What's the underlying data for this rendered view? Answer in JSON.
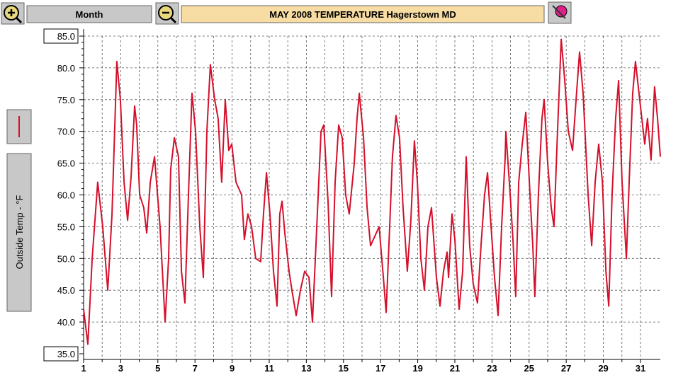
{
  "toolbar": {
    "period_button": "Month"
  },
  "chart_data": {
    "type": "line",
    "title": "MAY  2008  TEMPERATURE  Hagerstown MD",
    "y_label": "Outside Temp - °F",
    "xlim": [
      1,
      32.07
    ],
    "ylim": [
      35,
      85
    ],
    "xticks": [
      1,
      3,
      5,
      7,
      9,
      11,
      13,
      15,
      17,
      19,
      21,
      23,
      25,
      27,
      29,
      31
    ],
    "yticks": [
      {
        "value": 35,
        "label": "35.0"
      },
      {
        "value": 40,
        "label": "40.0"
      },
      {
        "value": 45,
        "label": "45.0"
      },
      {
        "value": 50,
        "label": "50.0"
      },
      {
        "value": 55,
        "label": "55.0"
      },
      {
        "value": 60,
        "label": "60.0"
      },
      {
        "value": 65,
        "label": "65.0"
      },
      {
        "value": 70,
        "label": "70.0"
      },
      {
        "value": 75,
        "label": "75.0"
      },
      {
        "value": 80,
        "label": "80.0"
      },
      {
        "value": 85,
        "label": "85.0"
      }
    ],
    "grid": true,
    "series": [
      {
        "name": "Outside Temp",
        "color": "#d4102c",
        "x": [
          1.0,
          1.23,
          1.46,
          1.76,
          2.03,
          2.3,
          2.53,
          2.79,
          2.98,
          3.18,
          3.37,
          3.56,
          3.75,
          3.86,
          4.02,
          4.24,
          4.4,
          4.59,
          4.82,
          5.12,
          5.39,
          5.58,
          5.69,
          5.89,
          6.11,
          6.27,
          6.46,
          6.65,
          6.84,
          7.03,
          7.26,
          7.45,
          7.64,
          7.83,
          8.06,
          8.25,
          8.44,
          8.63,
          8.82,
          8.98,
          9.21,
          9.51,
          9.66,
          9.85,
          10.05,
          10.27,
          10.54,
          10.69,
          10.85,
          11.04,
          11.23,
          11.42,
          11.57,
          11.69,
          11.84,
          12.07,
          12.22,
          12.45,
          12.68,
          12.91,
          13.14,
          13.33,
          13.56,
          13.79,
          13.94,
          14.17,
          14.36,
          14.55,
          14.74,
          14.93,
          15.12,
          15.31,
          15.58,
          15.73,
          15.85,
          16.08,
          16.27,
          16.46,
          16.92,
          17.15,
          17.3,
          17.49,
          17.64,
          17.83,
          18.02,
          18.21,
          18.37,
          18.44,
          18.63,
          18.82,
          18.98,
          19.17,
          19.36,
          19.55,
          19.74,
          20.01,
          20.2,
          20.39,
          20.58,
          20.66,
          20.85,
          21.0,
          21.23,
          21.42,
          21.61,
          21.8,
          21.99,
          22.22,
          22.41,
          22.6,
          22.76,
          22.95,
          23.14,
          23.33,
          23.52,
          23.71,
          23.75,
          23.98,
          24.13,
          24.28,
          24.44,
          24.63,
          24.82,
          25.05,
          25.2,
          25.31,
          25.5,
          25.69,
          25.81,
          26.0,
          26.19,
          26.34,
          26.53,
          26.73,
          26.92,
          27.11,
          27.34,
          27.53,
          27.72,
          27.91,
          28.18,
          28.37,
          28.56,
          28.75,
          28.95,
          29.14,
          29.29,
          29.47,
          29.66,
          29.82,
          30.01,
          30.24,
          30.39,
          30.58,
          30.73,
          30.96,
          31.23,
          31.38,
          31.57,
          31.76,
          31.92,
          32.07
        ],
        "values": [
          42,
          36.5,
          50,
          62,
          55,
          45,
          57,
          81,
          75,
          62,
          56,
          63,
          74,
          71,
          60,
          58,
          54,
          62,
          66,
          55,
          40,
          50,
          64,
          69,
          66,
          48,
          43,
          60,
          76,
          70,
          55,
          47,
          70,
          80.5,
          75,
          72,
          62,
          75,
          67,
          68,
          62,
          60,
          53,
          57,
          55,
          50,
          49.5,
          57,
          63.5,
          57,
          48,
          42.5,
          57,
          59,
          54,
          48,
          45,
          41,
          45,
          48,
          47,
          40,
          55,
          70,
          71,
          59,
          44,
          62,
          71,
          69,
          60,
          57,
          65,
          72,
          76,
          69,
          58,
          52,
          55,
          47,
          41.5,
          55,
          66,
          72.5,
          69,
          58,
          51,
          48,
          56,
          68.5,
          62,
          50,
          45,
          55,
          58,
          47,
          42.5,
          48,
          51,
          47,
          57,
          53,
          42,
          48,
          66,
          52,
          46,
          43,
          52,
          60,
          63.5,
          55,
          47,
          41,
          55,
          66,
          70,
          60,
          53,
          44,
          62,
          68,
          73,
          60,
          52,
          44,
          60,
          72,
          75,
          65,
          58,
          55,
          70,
          84.5,
          78,
          70,
          67,
          75,
          82.5,
          76,
          60,
          52,
          62,
          68,
          62,
          48,
          42.5,
          60,
          72,
          78,
          62,
          50,
          62,
          76,
          81,
          75,
          68,
          72,
          65.5,
          77,
          72,
          66
        ]
      }
    ]
  }
}
